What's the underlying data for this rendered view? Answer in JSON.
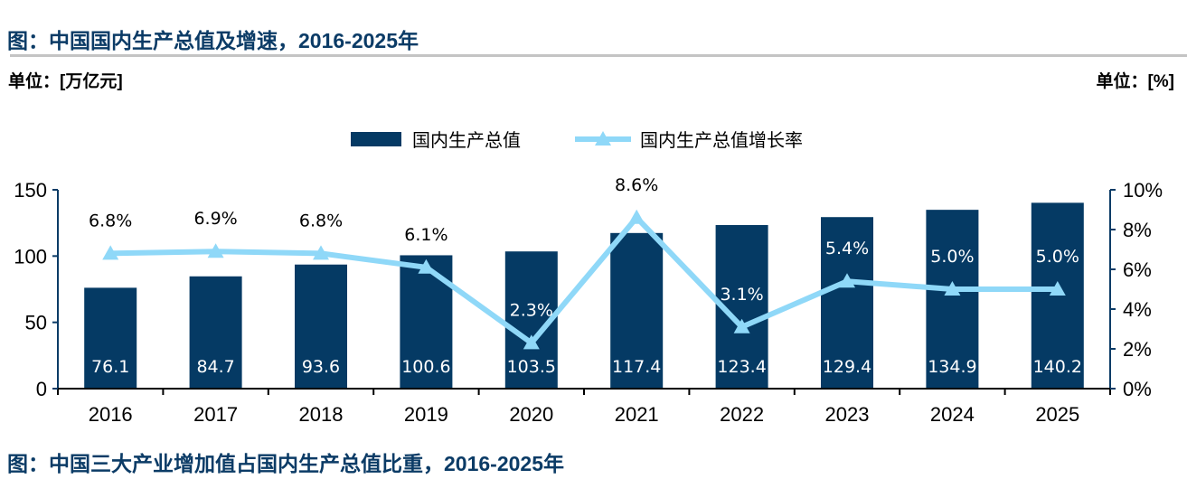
{
  "title": "图：中国国内生产总值及增速，2016-2025年",
  "next_title": "图：中国三大产业增加值占国内生产总值比重，2016-2025年",
  "unit_left": "单位：[万亿元]",
  "unit_right": "单位：[%]",
  "chart_data": {
    "type": "bar",
    "categories": [
      "2016",
      "2017",
      "2018",
      "2019",
      "2020",
      "2021",
      "2022",
      "2023",
      "2024",
      "2025"
    ],
    "series": [
      {
        "name": "国内生产总值",
        "type": "bar",
        "axis": "left",
        "color": "#053a64",
        "values": [
          76.1,
          84.7,
          93.6,
          100.6,
          103.5,
          117.4,
          123.4,
          129.4,
          134.9,
          140.2
        ],
        "labels": [
          "76.1",
          "84.7",
          "93.6",
          "100.6",
          "103.5",
          "117.4",
          "123.4",
          "129.4",
          "134.9",
          "140.2"
        ]
      },
      {
        "name": "国内生产总值增长率",
        "type": "line",
        "axis": "right",
        "color": "#8fd8f8",
        "values": [
          6.8,
          6.9,
          6.8,
          6.1,
          2.3,
          8.6,
          3.1,
          5.4,
          5.0,
          5.0
        ],
        "labels": [
          "6.8%",
          "6.9%",
          "6.8%",
          "6.1%",
          "2.3%",
          "8.6%",
          "3.1%",
          "5.4%",
          "5.0%",
          "5.0%"
        ]
      }
    ],
    "y_left": {
      "range": [
        0,
        150
      ],
      "ticks": [
        "0",
        "50",
        "100",
        "150"
      ],
      "tick_values": [
        0,
        50,
        100,
        150
      ]
    },
    "y_right": {
      "range": [
        0,
        10
      ],
      "ticks": [
        "0%",
        "2%",
        "4%",
        "6%",
        "8%",
        "10%"
      ],
      "tick_values": [
        0,
        2,
        4,
        6,
        8,
        10
      ]
    },
    "legend": "top-center",
    "grid": false
  }
}
